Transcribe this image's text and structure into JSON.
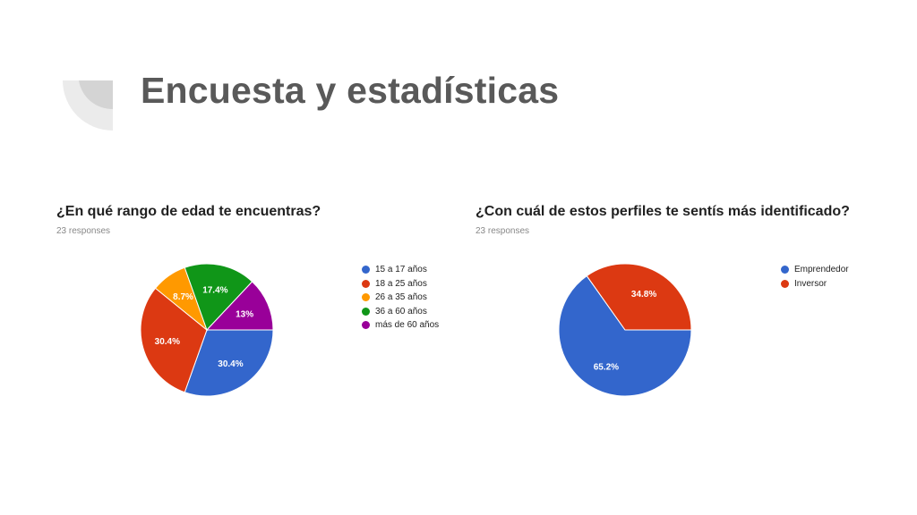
{
  "slide": {
    "title": "Encuesta y estadísticas"
  },
  "colors": {
    "blue": "#3366cc",
    "red": "#dc3912",
    "orange": "#ff9900",
    "green": "#109618",
    "purple": "#990099",
    "title_gray": "#595959",
    "deco_light": "#ebebeb",
    "deco_dark": "#d4d4d4"
  },
  "chart_data": [
    {
      "type": "pie",
      "title": "¿En qué rango de edad te encuentras?",
      "subtitle": "23 responses",
      "categories": [
        "15 a 17 años",
        "18 a 25 años",
        "26 a 35 años",
        "36 a 60 años",
        "más de 60 años"
      ],
      "values": [
        30.4,
        30.4,
        8.7,
        17.4,
        13
      ],
      "labels": [
        "30.4%",
        "30.4%",
        "8.7%",
        "17.4%",
        "13%"
      ],
      "colors": [
        "#3366cc",
        "#dc3912",
        "#ff9900",
        "#109618",
        "#990099"
      ],
      "legend": "right"
    },
    {
      "type": "pie",
      "title": "¿Con cuál de estos perfiles te sentís más identificado?",
      "subtitle": "23 responses",
      "categories": [
        "Emprendedor",
        "Inversor"
      ],
      "values": [
        65.2,
        34.8
      ],
      "labels": [
        "65.2%",
        "34.8%"
      ],
      "colors": [
        "#3366cc",
        "#dc3912"
      ],
      "legend": "right"
    }
  ]
}
